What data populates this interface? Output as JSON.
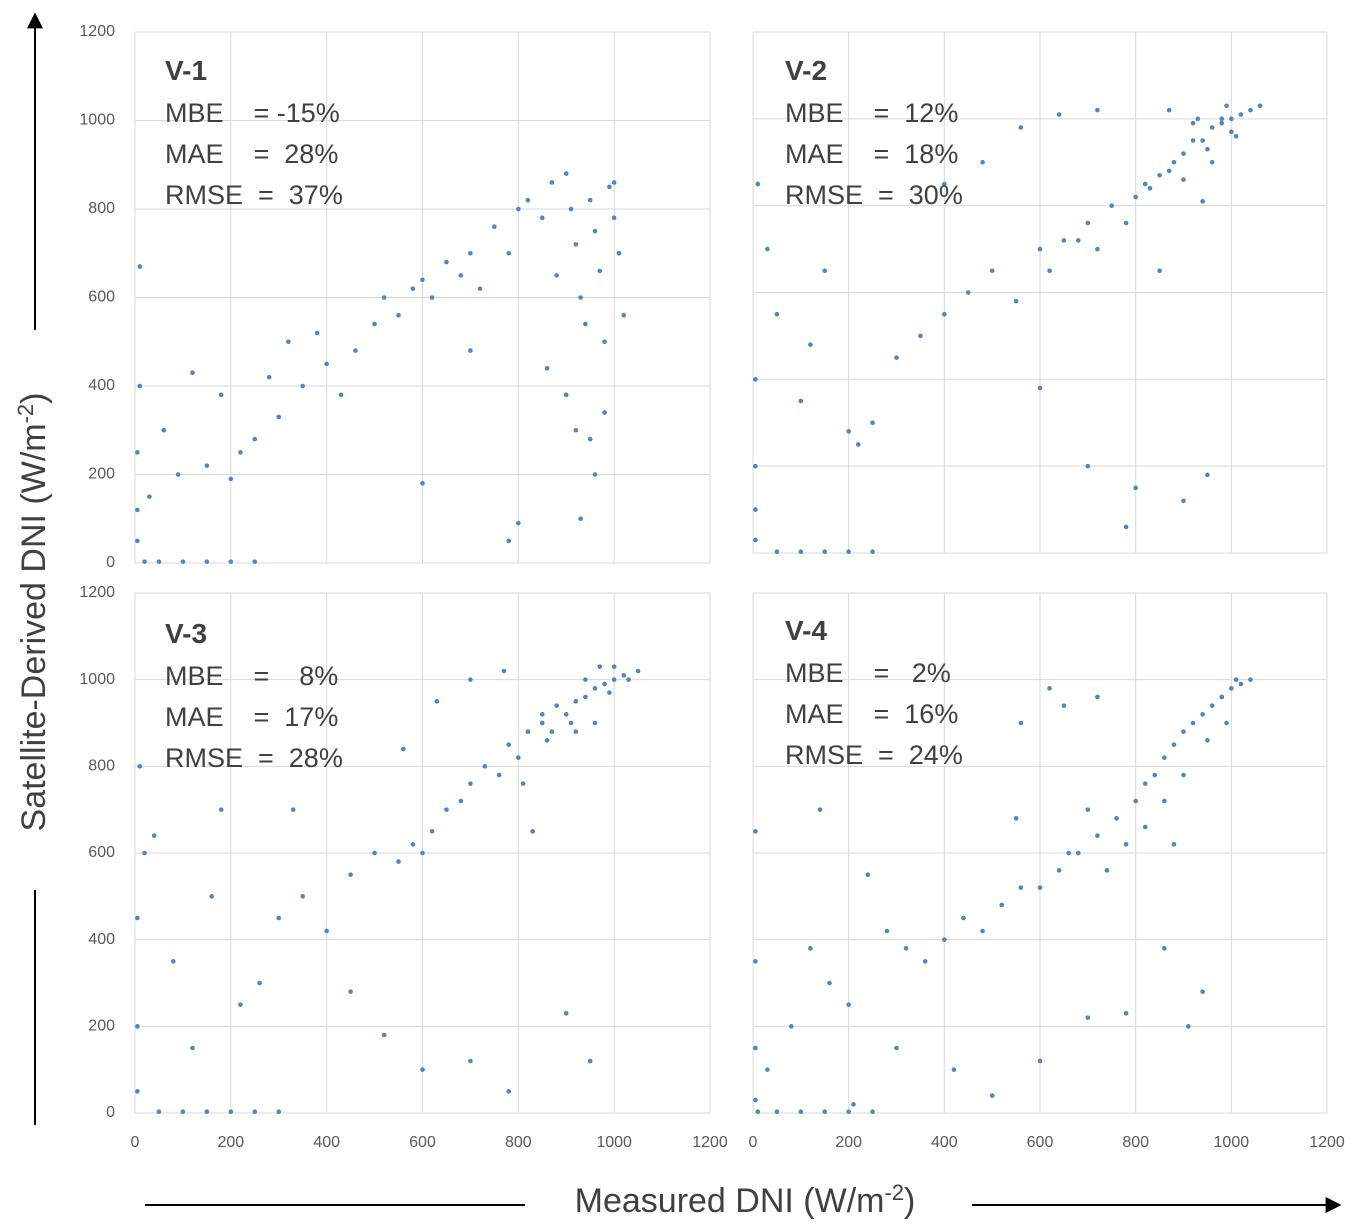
{
  "axis_labels": {
    "x": "Measured DNI (W/m",
    "x_sup": "-2",
    "x_end": ")",
    "y": "Satellite-Derived DNI (W/m",
    "y_sup": "-2",
    "y_end": ")"
  },
  "chart_data": [
    {
      "type": "scatter",
      "title": "V-1",
      "annotations": [
        "MBE    = -15%",
        "MAE    =  28%",
        "RMSE  =  37%"
      ],
      "color": "#4a86c8",
      "xlim": [
        0,
        1200
      ],
      "ylim": [
        0,
        1200
      ],
      "xticks": [
        0,
        200,
        400,
        600,
        800,
        1000,
        1200
      ],
      "yticks": [
        0,
        200,
        400,
        600,
        800,
        1000,
        1200
      ],
      "show_xticklabels": false,
      "show_yticklabels": true,
      "grid": true,
      "x": [
        5,
        5,
        5,
        10,
        20,
        50,
        100,
        150,
        200,
        250,
        10,
        30,
        60,
        90,
        120,
        150,
        180,
        200,
        220,
        250,
        280,
        300,
        320,
        350,
        380,
        400,
        430,
        460,
        500,
        520,
        550,
        580,
        600,
        620,
        650,
        680,
        700,
        720,
        750,
        780,
        800,
        820,
        850,
        870,
        880,
        900,
        910,
        920,
        930,
        940,
        950,
        960,
        970,
        980,
        990,
        1000,
        1010,
        1020,
        860,
        900,
        920,
        950,
        980,
        700,
        600,
        780,
        800,
        930,
        960,
        1000
      ],
      "y": [
        50,
        120,
        250,
        400,
        3,
        3,
        3,
        3,
        3,
        3,
        670,
        150,
        300,
        200,
        430,
        220,
        380,
        190,
        250,
        280,
        420,
        330,
        500,
        400,
        520,
        450,
        380,
        480,
        540,
        600,
        560,
        620,
        640,
        600,
        680,
        650,
        700,
        620,
        760,
        700,
        800,
        820,
        780,
        860,
        650,
        880,
        800,
        720,
        600,
        540,
        820,
        750,
        660,
        500,
        850,
        780,
        700,
        560,
        440,
        380,
        300,
        280,
        340,
        480,
        180,
        50,
        90,
        100,
        200,
        860
      ]
    },
    {
      "type": "scatter",
      "title": "V-2",
      "annotations": [
        "MBE    =  12%",
        "MAE    =  18%",
        "RMSE  =  30%"
      ],
      "color": "#4a86c8",
      "xlim": [
        0,
        1200
      ],
      "ylim": [
        0,
        1200
      ],
      "xticks": [
        0,
        200,
        400,
        600,
        800,
        1000,
        1200
      ],
      "yticks": [
        0,
        200,
        400,
        600,
        800,
        1000,
        1200
      ],
      "show_xticklabels": false,
      "show_yticklabels": false,
      "grid": true,
      "x": [
        5,
        5,
        5,
        5,
        10,
        50,
        100,
        150,
        200,
        250,
        50,
        100,
        150,
        200,
        220,
        250,
        300,
        350,
        400,
        450,
        500,
        550,
        600,
        620,
        650,
        680,
        700,
        720,
        750,
        780,
        800,
        820,
        850,
        870,
        880,
        900,
        920,
        940,
        960,
        980,
        1000,
        1020,
        1040,
        1060,
        900,
        950,
        1000,
        980,
        870,
        920,
        600,
        700,
        800,
        900,
        950,
        780,
        850,
        30,
        120,
        400,
        480,
        560,
        640,
        720,
        830,
        940,
        1010,
        990,
        960,
        930
      ],
      "y": [
        30,
        100,
        200,
        400,
        850,
        3,
        3,
        3,
        3,
        3,
        550,
        350,
        650,
        280,
        250,
        300,
        450,
        500,
        550,
        600,
        650,
        580,
        700,
        650,
        720,
        720,
        760,
        700,
        800,
        760,
        820,
        850,
        870,
        880,
        900,
        920,
        950,
        950,
        980,
        990,
        1000,
        1010,
        1020,
        1030,
        860,
        930,
        970,
        1000,
        1020,
        990,
        380,
        200,
        150,
        120,
        180,
        60,
        650,
        700,
        480,
        850,
        900,
        980,
        1010,
        1020,
        840,
        810,
        960,
        1030,
        900,
        1000
      ]
    },
    {
      "type": "scatter",
      "title": "V-3",
      "annotations": [
        "MBE    =    8%",
        "MAE    =  17%",
        "RMSE  =  28%"
      ],
      "color": "#4a86c8",
      "xlim": [
        0,
        1200
      ],
      "ylim": [
        0,
        1200
      ],
      "xticks": [
        0,
        200,
        400,
        600,
        800,
        1000,
        1200
      ],
      "yticks": [
        0,
        200,
        400,
        600,
        800,
        1000,
        1200
      ],
      "show_xticklabels": true,
      "show_yticklabels": true,
      "grid": true,
      "x": [
        5,
        5,
        5,
        10,
        50,
        100,
        150,
        200,
        250,
        300,
        20,
        80,
        120,
        180,
        220,
        260,
        300,
        350,
        400,
        450,
        500,
        550,
        580,
        600,
        620,
        650,
        680,
        700,
        730,
        760,
        780,
        800,
        820,
        850,
        870,
        900,
        920,
        940,
        960,
        980,
        1000,
        1020,
        1050,
        880,
        940,
        990,
        970,
        910,
        860,
        810,
        450,
        520,
        600,
        700,
        780,
        900,
        950,
        40,
        160,
        330,
        560,
        630,
        700,
        770,
        830,
        960,
        1030,
        1000,
        920,
        850
      ],
      "y": [
        50,
        200,
        450,
        800,
        3,
        3,
        3,
        3,
        3,
        3,
        600,
        350,
        150,
        700,
        250,
        300,
        450,
        500,
        420,
        550,
        600,
        580,
        620,
        600,
        650,
        700,
        720,
        760,
        800,
        780,
        850,
        820,
        880,
        900,
        880,
        920,
        950,
        960,
        980,
        990,
        1000,
        1010,
        1020,
        940,
        1000,
        970,
        1030,
        900,
        860,
        760,
        280,
        180,
        100,
        120,
        50,
        230,
        120,
        640,
        500,
        700,
        840,
        950,
        1000,
        1020,
        650,
        900,
        1000,
        1030,
        880,
        920
      ]
    },
    {
      "type": "scatter",
      "title": "V-4",
      "annotations": [
        "MBE    =   2%",
        "MAE    =  16%",
        "RMSE  =  24%"
      ],
      "color": "#4a86c8",
      "xlim": [
        0,
        1200
      ],
      "ylim": [
        0,
        1200
      ],
      "xticks": [
        0,
        200,
        400,
        600,
        800,
        1000,
        1200
      ],
      "yticks": [
        0,
        200,
        400,
        600,
        800,
        1000,
        1200
      ],
      "show_xticklabels": true,
      "show_yticklabels": false,
      "grid": true,
      "x": [
        5,
        5,
        5,
        5,
        10,
        50,
        100,
        150,
        200,
        250,
        30,
        80,
        120,
        160,
        200,
        240,
        280,
        320,
        360,
        400,
        440,
        480,
        520,
        560,
        600,
        640,
        680,
        720,
        760,
        800,
        820,
        840,
        860,
        880,
        900,
        920,
        940,
        960,
        980,
        1000,
        1020,
        1040,
        950,
        900,
        860,
        820,
        780,
        740,
        700,
        660,
        300,
        420,
        500,
        600,
        700,
        780,
        860,
        910,
        940,
        980,
        620,
        560,
        650,
        720,
        550,
        140,
        210,
        880,
        990,
        1010
      ],
      "y": [
        30,
        150,
        350,
        650,
        3,
        3,
        3,
        3,
        3,
        3,
        100,
        200,
        380,
        300,
        250,
        550,
        420,
        380,
        350,
        400,
        450,
        420,
        480,
        520,
        520,
        560,
        600,
        640,
        680,
        720,
        760,
        780,
        820,
        850,
        880,
        900,
        920,
        940,
        960,
        980,
        990,
        1000,
        860,
        780,
        720,
        660,
        620,
        560,
        700,
        600,
        150,
        100,
        40,
        120,
        220,
        230,
        380,
        200,
        280,
        960,
        980,
        900,
        940,
        960,
        680,
        700,
        20,
        620,
        900,
        1000
      ]
    }
  ]
}
